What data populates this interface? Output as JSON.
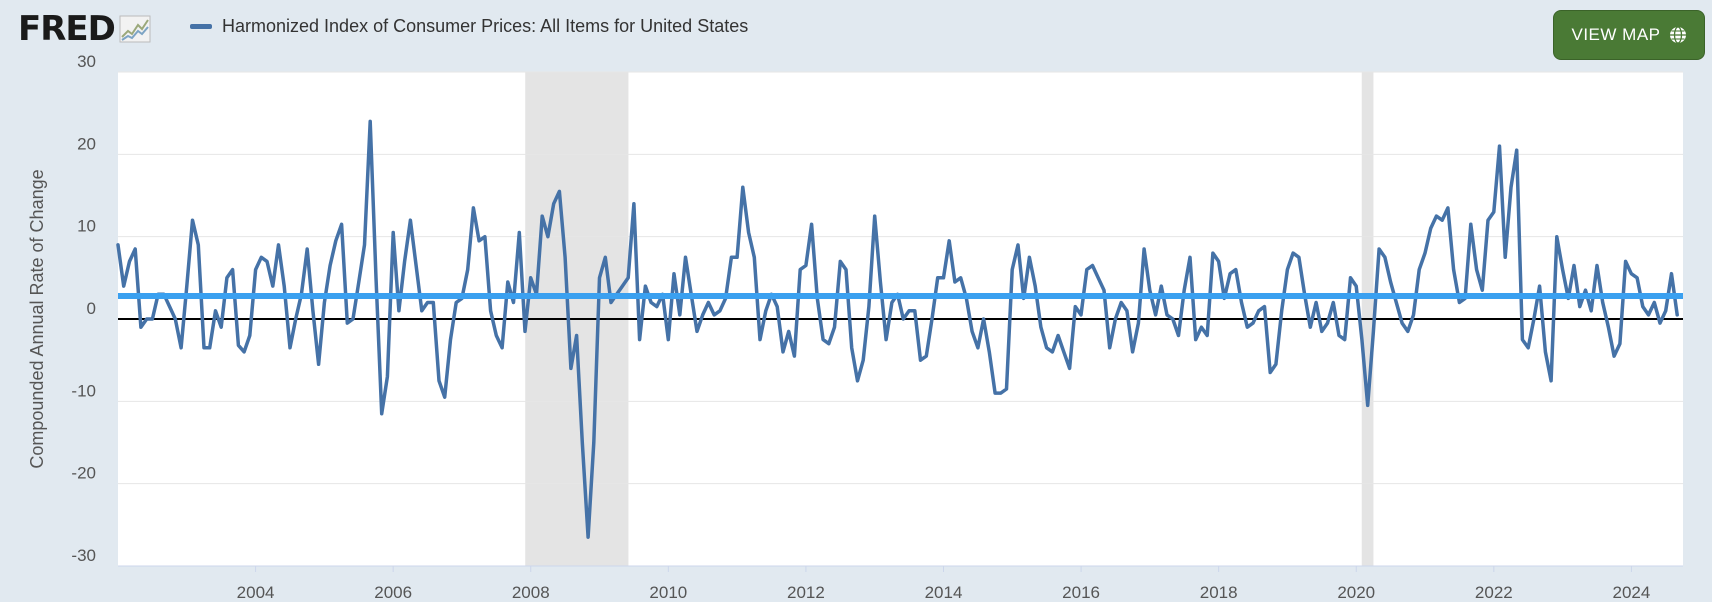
{
  "header": {
    "logo_text": "FRED",
    "logo_icon": "trend-line-icon",
    "view_map_label": "VIEW MAP",
    "view_map_icon": "globe-icon"
  },
  "colors": {
    "series": "#4572a7",
    "mean_line": "#3aa0f0",
    "recession": "#e4e4e4",
    "button": "#4a7a35",
    "background": "#e1e9f0"
  },
  "chart_data": {
    "type": "line",
    "title": "",
    "xlabel": "",
    "ylabel": "Compounded Annual Rate of Change",
    "ylim": [
      -30,
      30
    ],
    "xlim": [
      2002.0,
      2024.75
    ],
    "yticks": [
      30,
      20,
      10,
      0,
      -10,
      -20,
      -30
    ],
    "xticks": [
      2004,
      2006,
      2008,
      2010,
      2012,
      2014,
      2016,
      2018,
      2020,
      2022,
      2024
    ],
    "grid": true,
    "legend": [
      {
        "name": "Harmonized Index of Consumer Prices: All Items for United States",
        "position": "top-left"
      }
    ],
    "reference_lines": [
      {
        "name": "zero",
        "y": 0,
        "color": "#000000"
      },
      {
        "name": "average",
        "y": 2.8,
        "color": "#3aa0f0"
      }
    ],
    "recessions": [
      [
        2007.92,
        2009.42
      ],
      [
        2020.08,
        2020.25
      ]
    ],
    "series": [
      {
        "name": "Harmonized Index of Consumer Prices: All Items for United States",
        "start": 2002.0,
        "step": 0.08333,
        "values": [
          9,
          4,
          7,
          8.5,
          -1,
          0,
          0,
          3,
          3,
          1.5,
          0,
          -3.5,
          4,
          12,
          9,
          -3.5,
          -3.5,
          1,
          -1,
          5,
          6,
          -3.2,
          -4,
          -2,
          6,
          7.5,
          7,
          4,
          9,
          4,
          -3.5,
          0,
          3,
          8.5,
          1,
          -5.5,
          2,
          6.5,
          9.5,
          11.5,
          -0.5,
          0,
          4.5,
          9,
          24,
          5,
          -11.5,
          -7,
          10.5,
          1,
          7,
          12,
          6.5,
          1,
          2,
          2,
          -7.5,
          -9.5,
          -2.5,
          2,
          2.5,
          6,
          13.5,
          9.5,
          10,
          1,
          -2,
          -3.5,
          4.5,
          2,
          10.5,
          -1.5,
          5,
          3,
          12.5,
          10,
          14,
          15.5,
          7.5,
          -6,
          -2,
          -15,
          -26.5,
          -15,
          5,
          7.5,
          2,
          3,
          4,
          5,
          14,
          -2.5,
          4,
          2,
          1.5,
          3,
          -2.5,
          5.5,
          0.5,
          7.5,
          3,
          -1.5,
          0.5,
          2,
          0.5,
          1,
          2.5,
          7.5,
          7.5,
          16,
          10.5,
          7.5,
          -2.5,
          1,
          3,
          1.5,
          -4,
          -1.5,
          -4.5,
          6,
          6.5,
          11.5,
          2.5,
          -2.5,
          -3,
          -1,
          7,
          6,
          -3.5,
          -7.5,
          -5,
          1.5,
          12.5,
          4.5,
          -2.5,
          2,
          3,
          0,
          1,
          1,
          -5,
          -4.5,
          0,
          5,
          5,
          9.5,
          4.5,
          5,
          2.5,
          -1.5,
          -3.5,
          0,
          -4,
          -9,
          -9,
          -8.5,
          6,
          9,
          2.5,
          7.5,
          4,
          -1,
          -3.5,
          -4,
          -2,
          -4,
          -6,
          1.5,
          0.5,
          6,
          6.5,
          5,
          3.5,
          -3.5,
          0,
          2,
          1,
          -4,
          -0.5,
          8.5,
          3.5,
          0.5,
          4,
          0.5,
          0,
          -2,
          3.5,
          7.5,
          -2.5,
          -1,
          -2,
          8,
          7,
          2.5,
          5.5,
          6,
          2,
          -1,
          -0.5,
          1,
          1.5,
          -6.5,
          -5.5,
          1,
          6,
          8,
          7.5,
          3,
          -1,
          2,
          -1.5,
          -0.5,
          2,
          -2,
          -2.5,
          5,
          4,
          -2.5,
          -10.5,
          -1.5,
          8.5,
          7.5,
          4.5,
          2,
          -0.5,
          -1.5,
          0.5,
          6,
          8,
          11,
          12.5,
          12,
          13.5,
          6,
          2,
          2.5,
          11.5,
          6,
          3.5,
          12,
          13,
          21,
          7.5,
          16,
          20.5,
          -2.5,
          -3.5,
          0,
          4,
          -4,
          -7.5,
          10,
          6,
          2.5,
          6.5,
          1.5,
          3.5,
          1,
          6.5,
          2,
          -1,
          -4.5,
          -3,
          7,
          5.5,
          5,
          1.5,
          0.5,
          2,
          -0.5,
          1,
          5.5,
          0.5
        ]
      }
    ]
  }
}
